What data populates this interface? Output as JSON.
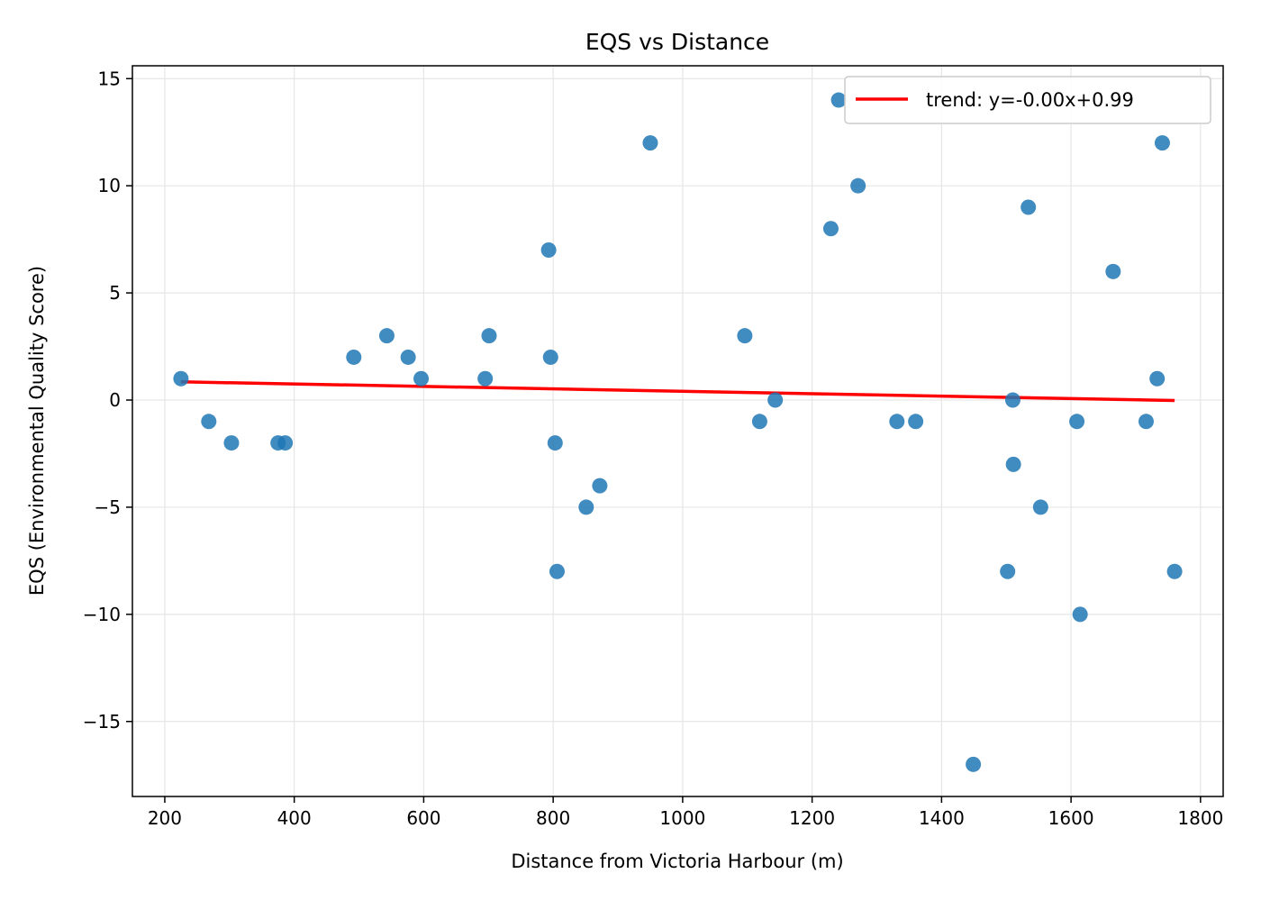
{
  "chart_data": {
    "type": "scatter",
    "title": "EQS vs Distance",
    "xlabel": "Distance from Victoria Harbour (m)",
    "ylabel": "EQS (Environmental Quality Score)",
    "xlim": [
      150,
      1835
    ],
    "ylim": [
      -18.5,
      15.6
    ],
    "xticks": [
      200,
      400,
      600,
      800,
      1000,
      1200,
      1400,
      1600,
      1800
    ],
    "yticks": [
      -15,
      -10,
      -5,
      0,
      5,
      10,
      15
    ],
    "grid": true,
    "legend_position": "top-right",
    "colors": {
      "points": "#1f77b4",
      "trend": "#ff0000",
      "grid": "#e6e6e6"
    },
    "series": [
      {
        "type": "scatter",
        "x": [
          225,
          268,
          303,
          375,
          386,
          492,
          543,
          576,
          596,
          695,
          701,
          793,
          796,
          803,
          806,
          851,
          872,
          950,
          1096,
          1119,
          1143,
          1229,
          1241,
          1271,
          1331,
          1360,
          1449,
          1502,
          1510,
          1511,
          1534,
          1553,
          1609,
          1614,
          1665,
          1716,
          1733,
          1741,
          1760
        ],
        "y": [
          1,
          -1,
          -2,
          -2,
          -2,
          2,
          3,
          2,
          1,
          1,
          3,
          7,
          2,
          -2,
          -8,
          -5,
          -4,
          12,
          3,
          -1,
          0,
          8,
          14,
          10,
          -1,
          -1,
          -17,
          -8,
          0,
          -3,
          9,
          -5,
          -1,
          -10,
          6,
          -1,
          1,
          12,
          -8
        ]
      },
      {
        "type": "line",
        "name": "trend: y=-0.00x+0.99",
        "x": [
          225,
          1760
        ],
        "y": [
          0.85,
          -0.02
        ]
      }
    ]
  }
}
